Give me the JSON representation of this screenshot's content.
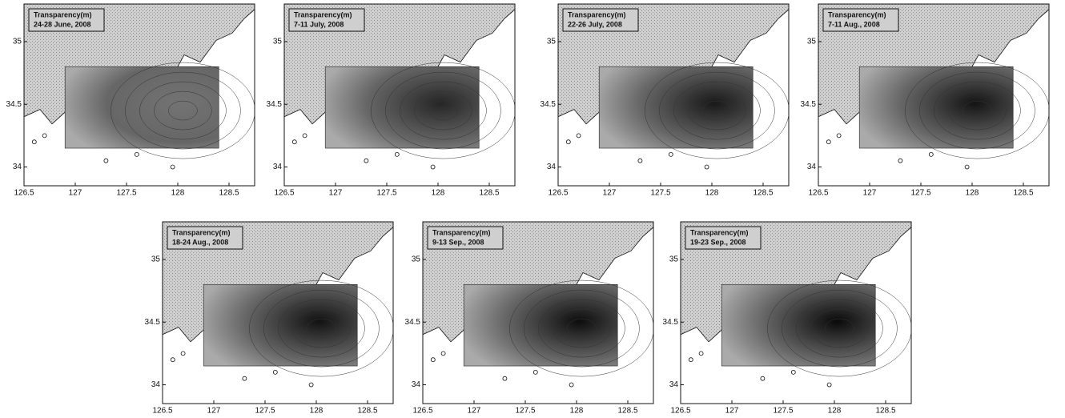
{
  "axes": {
    "xlim": [
      126.5,
      128.75
    ],
    "ylim": [
      33.85,
      35.3
    ],
    "xticks": [
      126.5,
      127,
      127.5,
      128,
      128.5
    ],
    "yticks": [
      34,
      34.5,
      35
    ]
  },
  "panels": [
    {
      "title": "Transparency(m)",
      "date": "24-28 June, 2008"
    },
    {
      "title": "Transparency(m)",
      "date": "7-11 July, 2008"
    },
    {
      "title": "Transparency(m)",
      "date": "22-26 July, 2008"
    },
    {
      "title": "Transparency(m)",
      "date": "7-11 Aug., 2008"
    },
    {
      "title": "Transparency(m)",
      "date": "18-24 Aug., 2008"
    },
    {
      "title": "Transparency(m)",
      "date": "9-13 Sep., 2008"
    },
    {
      "title": "Transparency(m)",
      "date": "19-23 Sep., 2008"
    }
  ]
}
